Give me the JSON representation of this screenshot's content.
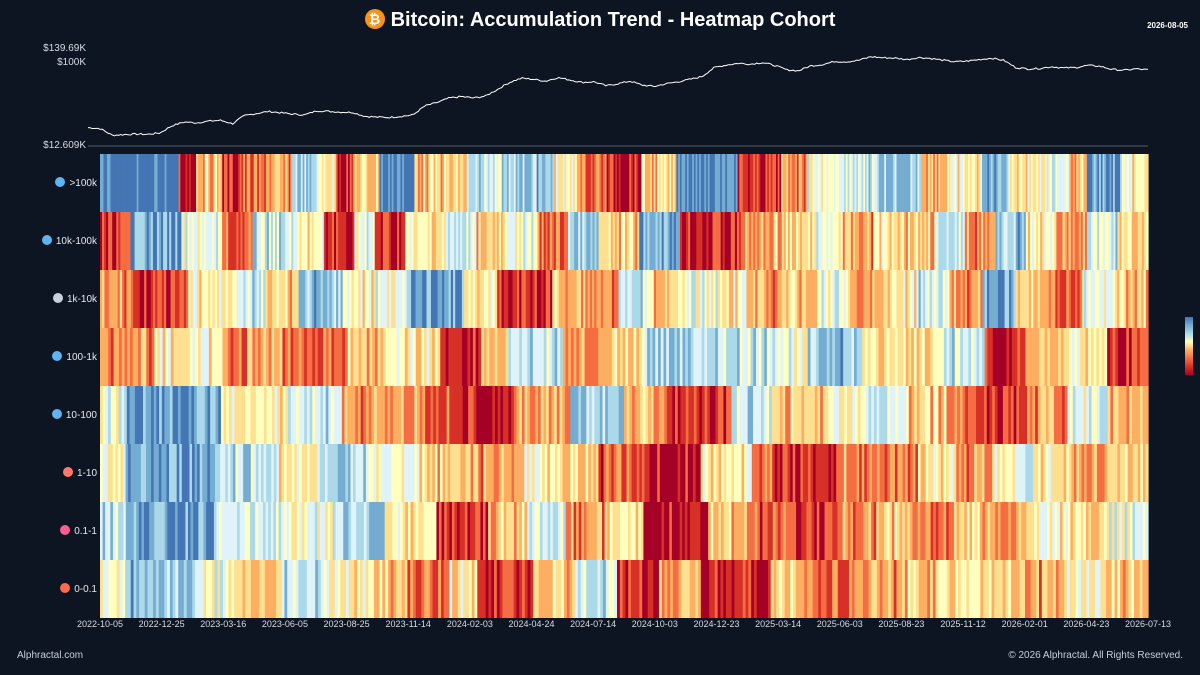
{
  "header": {
    "title": "Bitcoin: Accumulation Trend - Heatmap Cohort",
    "date": "2026-08-05",
    "icon": "bitcoin-icon"
  },
  "footer": {
    "left": "Alphractal.com",
    "right": "© 2026 Alphractal. All Rights Reserved."
  },
  "colors": {
    "background": "#0d1422",
    "scale": [
      "#4475b4",
      "#74add1",
      "#abd9e9",
      "#e0f3f8",
      "#ffffbf",
      "#fee090",
      "#fdae61",
      "#f46d43",
      "#d73027",
      "#a50026"
    ]
  },
  "chart_data": [
    {
      "type": "line",
      "title": "Bitcoin: Accumulation Trend - Heatmap Cohort",
      "series": [
        {
          "values": [
            20000,
            19500,
            16500,
            16800,
            17000,
            16900,
            17500,
            21000,
            23000,
            22500,
            23500,
            24000,
            22000,
            27000,
            28500,
            30000,
            29000,
            28000,
            27500,
            30500,
            30000,
            29500,
            29200,
            26500,
            26000,
            25800,
            26500,
            27500,
            34500,
            37500,
            42000,
            43500,
            42000,
            44000,
            52000,
            62000,
            69000,
            67000,
            64000,
            70000,
            66000,
            62000,
            63000,
            57000,
            60000,
            64000,
            58000,
            56000,
            60000,
            63000,
            67000,
            72000,
            90000,
            96000,
            100000,
            98000,
            102000,
            95000,
            85000,
            83000,
            94000,
            97000,
            105000,
            104000,
            108000,
            118000,
            115000,
            114000,
            110000,
            116000,
            113000,
            108000,
            104000,
            106000,
            110000,
            114000,
            108000,
            90000,
            87000,
            88000,
            92000,
            89000,
            90000,
            95000,
            93000,
            86000,
            84000,
            87000,
            85000
          ]
        }
      ],
      "ylim": [
        12609,
        139690
      ],
      "yticks": [
        "$139.69K",
        "$100K",
        "$12.609K"
      ]
    },
    {
      "type": "heatmap",
      "rows": [
        ">100k",
        "10k-100k",
        "1k-10k",
        "100-1k",
        "10-100",
        "1-10",
        "0.1-1",
        "0-0.1"
      ],
      "row_icons": [
        "whale-icon",
        "whale-icon",
        "shark-icon",
        "dolphin-icon",
        "fish-icon",
        "octopus-icon",
        "crab-icon",
        "shrimp-icon"
      ],
      "row_icon_colors": [
        "#5fb3f0",
        "#5fb3f0",
        "#c9d2dc",
        "#5fb3f0",
        "#5fb3f0",
        "#ff7a6a",
        "#ff5d8f",
        "#ff6a4a"
      ],
      "xticks": [
        "2022-10-05",
        "2022-12-25",
        "2023-03-16",
        "2023-06-05",
        "2023-08-25",
        "2023-11-14",
        "2024-02-03",
        "2024-04-24",
        "2024-07-14",
        "2024-10-03",
        "2024-12-23",
        "2025-03-14",
        "2025-06-03",
        "2025-08-23",
        "2025-11-12",
        "2026-02-01",
        "2026-04-23",
        "2026-07-13"
      ],
      "color_scale": "accumulation (blue) to distribution (red)",
      "segments": [
        [
          [
            0,
            9
          ],
          [
            0.9,
            2
          ],
          [
            0.6,
            3
          ],
          [
            0.9,
            2
          ],
          [
            0.8,
            3
          ],
          [
            0.7,
            3
          ],
          [
            0.2,
            3
          ],
          [
            0.5,
            2
          ],
          [
            0.9,
            2
          ],
          [
            0.6,
            3
          ],
          [
            0,
            4
          ],
          [
            0.6,
            6
          ],
          [
            0.3,
            4
          ],
          [
            0.2,
            6
          ],
          [
            0.5,
            3
          ],
          [
            0.8,
            3
          ],
          [
            0.9,
            4
          ],
          [
            0.6,
            4
          ],
          [
            0,
            7
          ],
          [
            0.9,
            5
          ],
          [
            0.7,
            3
          ],
          [
            0.4,
            4
          ],
          [
            0.3,
            4
          ],
          [
            0.2,
            5
          ],
          [
            0.6,
            3
          ],
          [
            0.5,
            4
          ],
          [
            0.1,
            3
          ],
          [
            0.5,
            5
          ],
          [
            0.3,
            2
          ],
          [
            0.6,
            2
          ],
          [
            0.1,
            4
          ],
          [
            0.5,
            3
          ]
        ],
        [
          [
            0.9,
            3
          ],
          [
            0.1,
            5
          ],
          [
            0.4,
            4
          ],
          [
            0.8,
            3
          ],
          [
            0.3,
            4
          ],
          [
            0.5,
            3
          ],
          [
            0.9,
            3
          ],
          [
            0.4,
            2
          ],
          [
            0.9,
            3
          ],
          [
            0.5,
            4
          ],
          [
            0.3,
            3
          ],
          [
            0.6,
            3
          ],
          [
            0.4,
            3
          ],
          [
            0.8,
            3
          ],
          [
            0.2,
            3
          ],
          [
            0.6,
            4
          ],
          [
            0.1,
            4
          ],
          [
            0.9,
            6
          ],
          [
            0.7,
            3
          ],
          [
            0.6,
            4
          ],
          [
            0.4,
            3
          ],
          [
            0.7,
            3
          ],
          [
            0.5,
            3
          ],
          [
            0.6,
            3
          ],
          [
            0.3,
            3
          ],
          [
            0.7,
            3
          ],
          [
            0.2,
            3
          ],
          [
            0.5,
            3
          ],
          [
            0.7,
            3
          ],
          [
            0.3,
            3
          ],
          [
            0.6,
            3
          ]
        ],
        [
          [
            0.7,
            3
          ],
          [
            0.9,
            5
          ],
          [
            0.5,
            4
          ],
          [
            0.3,
            3
          ],
          [
            0.6,
            3
          ],
          [
            0.2,
            4
          ],
          [
            0.5,
            3
          ],
          [
            0.4,
            3
          ],
          [
            0.1,
            5
          ],
          [
            0.5,
            3
          ],
          [
            0.9,
            5
          ],
          [
            0.6,
            3
          ],
          [
            0.7,
            3
          ],
          [
            0.3,
            3
          ],
          [
            0.6,
            3
          ],
          [
            0.4,
            3
          ],
          [
            0.5,
            3
          ],
          [
            0.7,
            3
          ],
          [
            0.6,
            3
          ],
          [
            0.4,
            3
          ],
          [
            0.7,
            3
          ],
          [
            0.5,
            3
          ],
          [
            0.3,
            3
          ],
          [
            0.7,
            3
          ],
          [
            0.1,
            3
          ],
          [
            0.6,
            3
          ],
          [
            0.8,
            3
          ],
          [
            0.4,
            3
          ],
          [
            0.6,
            3
          ]
        ],
        [
          [
            0.7,
            4
          ],
          [
            0.5,
            5
          ],
          [
            0.7,
            5
          ],
          [
            0.8,
            4
          ],
          [
            0.6,
            3
          ],
          [
            0.5,
            4
          ],
          [
            0.9,
            3
          ],
          [
            0.6,
            2
          ],
          [
            0.3,
            4
          ],
          [
            0.7,
            3
          ],
          [
            0.6,
            3
          ],
          [
            0.2,
            5
          ],
          [
            0.3,
            4
          ],
          [
            0.4,
            3
          ],
          [
            0.2,
            4
          ],
          [
            0.5,
            3
          ],
          [
            0.6,
            3
          ],
          [
            0.3,
            3
          ],
          [
            0.9,
            3
          ],
          [
            0.6,
            3
          ],
          [
            0.5,
            3
          ],
          [
            0.9,
            3
          ]
        ],
        [
          [
            0.4,
            2
          ],
          [
            0.1,
            7
          ],
          [
            0.5,
            5
          ],
          [
            0.3,
            4
          ],
          [
            0.7,
            6
          ],
          [
            0.8,
            3
          ],
          [
            0.9,
            4
          ],
          [
            0.7,
            4
          ],
          [
            0.2,
            4
          ],
          [
            0.6,
            3
          ],
          [
            0.9,
            5
          ],
          [
            0.3,
            3
          ],
          [
            0.6,
            4
          ],
          [
            0.5,
            3
          ],
          [
            0.3,
            3
          ],
          [
            0.6,
            3
          ],
          [
            0.8,
            3
          ],
          [
            0.9,
            3
          ],
          [
            0.7,
            3
          ],
          [
            0.4,
            3
          ],
          [
            0.6,
            3
          ]
        ],
        [
          [
            0.4,
            2
          ],
          [
            0.1,
            7
          ],
          [
            0.3,
            5
          ],
          [
            0.5,
            3
          ],
          [
            0.2,
            4
          ],
          [
            0.4,
            4
          ],
          [
            0.6,
            4
          ],
          [
            0.7,
            4
          ],
          [
            0.5,
            3
          ],
          [
            0.6,
            3
          ],
          [
            0.8,
            3
          ],
          [
            0.95,
            5
          ],
          [
            0.5,
            4
          ],
          [
            0.8,
            3
          ],
          [
            0.9,
            4
          ],
          [
            0.7,
            3
          ],
          [
            0.8,
            3
          ],
          [
            0.5,
            3
          ],
          [
            0.7,
            3
          ],
          [
            0.4,
            3
          ],
          [
            0.5,
            3
          ],
          [
            0.7,
            3
          ],
          [
            0.6,
            3
          ]
        ],
        [
          [
            0.3,
            2
          ],
          [
            0.1,
            7
          ],
          [
            0.3,
            5
          ],
          [
            0.4,
            4
          ],
          [
            0.2,
            4
          ],
          [
            0.5,
            4
          ],
          [
            0.9,
            4
          ],
          [
            0.6,
            3
          ],
          [
            0.3,
            3
          ],
          [
            0.7,
            3
          ],
          [
            0.5,
            3
          ],
          [
            0.95,
            5
          ],
          [
            0.6,
            3
          ],
          [
            0.8,
            3
          ],
          [
            0.9,
            4
          ],
          [
            0.7,
            3
          ],
          [
            0.6,
            3
          ],
          [
            0.8,
            3
          ],
          [
            0.6,
            3
          ],
          [
            0.7,
            3
          ],
          [
            0.5,
            3
          ],
          [
            0.6,
            3
          ],
          [
            0.4,
            3
          ]
        ],
        [
          [
            0.4,
            2
          ],
          [
            0.2,
            5
          ],
          [
            0.4,
            3
          ],
          [
            0.6,
            3
          ],
          [
            0.3,
            3
          ],
          [
            0.5,
            3
          ],
          [
            0.6,
            3
          ],
          [
            0.8,
            3
          ],
          [
            0.5,
            2
          ],
          [
            0.9,
            4
          ],
          [
            0.6,
            3
          ],
          [
            0.3,
            3
          ],
          [
            0.9,
            3
          ],
          [
            0.7,
            3
          ],
          [
            0.95,
            5
          ],
          [
            0.6,
            3
          ],
          [
            0.8,
            3
          ],
          [
            0.7,
            3
          ],
          [
            0.6,
            3
          ],
          [
            0.5,
            3
          ],
          [
            0.6,
            3
          ],
          [
            0.7,
            3
          ],
          [
            0.5,
            3
          ],
          [
            0.6,
            3
          ]
        ]
      ]
    }
  ]
}
